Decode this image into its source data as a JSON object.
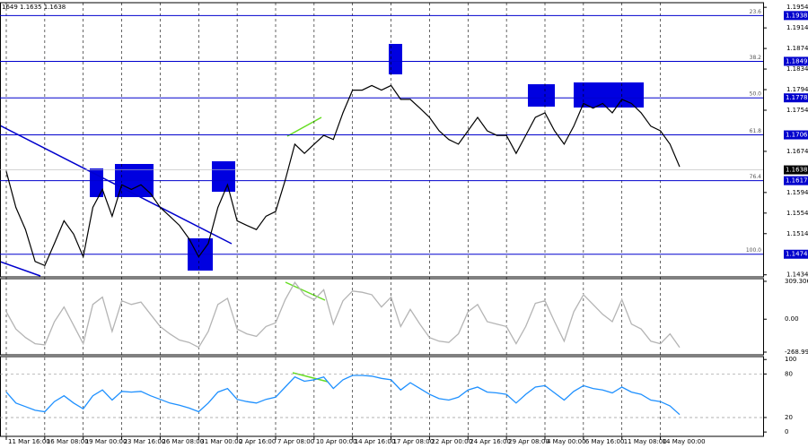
{
  "chart_data": [
    {
      "type": "line",
      "header": "1649 1.1635 1.1638",
      "color": "#000000",
      "categories": [
        "11 Mar 16:00",
        null,
        null,
        null,
        "16 Mar 08:00",
        null,
        null,
        null,
        "19 Mar 00:00",
        null,
        null,
        null,
        "23 Mar 16:00",
        null,
        null,
        null,
        "26 Mar 08:00",
        null,
        null,
        null,
        "31 Mar 00:00",
        null,
        null,
        null,
        "2 Apr 16:00",
        null,
        null,
        null,
        "7 Apr 08:00",
        null,
        null,
        null,
        "10 Apr 00:00",
        null,
        null,
        null,
        "14 Apr 16:00",
        null,
        null,
        null,
        "17 Apr 08:00",
        null,
        null,
        null,
        "22 Apr 00:00",
        null,
        null,
        null,
        "24 Apr 16:00",
        null,
        null,
        null,
        "29 Apr 08:00",
        null,
        null,
        null,
        "4 May 00:00",
        null,
        null,
        null,
        "6 May 16:00",
        null,
        null,
        null,
        "11 May 08:00",
        null,
        null,
        null,
        "14 May 00:00",
        null,
        null
      ],
      "values": [
        1.1635,
        1.1565,
        1.1522,
        1.146,
        1.1452,
        1.1495,
        1.1539,
        1.1513,
        1.1469,
        1.1565,
        1.16,
        1.1548,
        1.1609,
        1.16,
        1.1609,
        1.1592,
        1.1565,
        1.1548,
        1.153,
        1.1504,
        1.1469,
        1.1495,
        1.1565,
        1.1609,
        1.1539,
        1.153,
        1.1522,
        1.1548,
        1.1557,
        1.1618,
        1.1688,
        1.167,
        1.1688,
        1.1705,
        1.1697,
        1.1749,
        1.1793,
        1.1793,
        1.1802,
        1.1793,
        1.1802,
        1.1775,
        1.1775,
        1.1758,
        1.174,
        1.1714,
        1.1697,
        1.1688,
        1.1714,
        1.174,
        1.1714,
        1.1705,
        1.1705,
        1.167,
        1.1705,
        1.174,
        1.1749,
        1.1714,
        1.1688,
        1.1723,
        1.1767,
        1.1758,
        1.1767,
        1.1749,
        1.1775,
        1.1767,
        1.1749,
        1.1723,
        1.1714,
        1.1688,
        1.1644
      ],
      "ylim": [
        1.143,
        1.1963
      ],
      "yticks": [
        1.1954,
        1.1914,
        1.1874,
        1.1834,
        1.1794,
        1.1754,
        1.1674,
        1.1594,
        1.1554,
        1.1514,
        1.1434
      ],
      "last_price": 1.1638,
      "levels": [
        {
          "ratio": "23.6",
          "price": 1.1938
        },
        {
          "ratio": "38.2",
          "price": 1.1849
        },
        {
          "ratio": "50.0",
          "price": 1.1778
        },
        {
          "ratio": "61.8",
          "price": 1.1706
        },
        {
          "ratio": "76.4",
          "price": 1.1617
        },
        {
          "ratio": "100.0",
          "price": 1.1474
        }
      ],
      "level_color": "#0000cd",
      "grid": "vertical"
    },
    {
      "type": "line",
      "color": "#b4b4b4",
      "values": [
        60,
        -80,
        -150,
        -200,
        -210,
        -20,
        100,
        -50,
        -200,
        120,
        180,
        -100,
        150,
        120,
        140,
        40,
        -60,
        -120,
        -170,
        -190,
        -230,
        -100,
        120,
        170,
        -80,
        -120,
        -140,
        -60,
        -30,
        160,
        300,
        200,
        160,
        240,
        -40,
        150,
        230,
        220,
        200,
        100,
        180,
        -60,
        80,
        -40,
        -150,
        -180,
        -190,
        -120,
        60,
        120,
        -20,
        -40,
        -60,
        -200,
        -60,
        130,
        150,
        -20,
        -180,
        60,
        200,
        120,
        40,
        -20,
        160,
        -40,
        -80,
        -180,
        -200,
        -120,
        -230
      ],
      "ylim": [
        -291,
        331
      ],
      "yticks": [
        309.3066,
        {
          "value": 0,
          "label": "0.00"
        },
        -268.999
      ]
    },
    {
      "type": "line",
      "color": "#1e90ff",
      "values": [
        55,
        40,
        35,
        30,
        28,
        42,
        50,
        40,
        32,
        50,
        58,
        44,
        56,
        55,
        56,
        50,
        45,
        40,
        37,
        33,
        28,
        40,
        55,
        60,
        45,
        42,
        40,
        45,
        48,
        62,
        76,
        70,
        72,
        76,
        60,
        72,
        78,
        78,
        77,
        74,
        72,
        58,
        68,
        60,
        52,
        46,
        44,
        48,
        58,
        62,
        55,
        54,
        52,
        40,
        52,
        62,
        64,
        54,
        44,
        56,
        64,
        60,
        58,
        54,
        62,
        55,
        52,
        44,
        42,
        36,
        24
      ],
      "ylim": [
        -6,
        104
      ],
      "yticks": [
        100,
        80,
        20,
        0
      ],
      "guides": [
        80,
        20
      ]
    }
  ]
}
